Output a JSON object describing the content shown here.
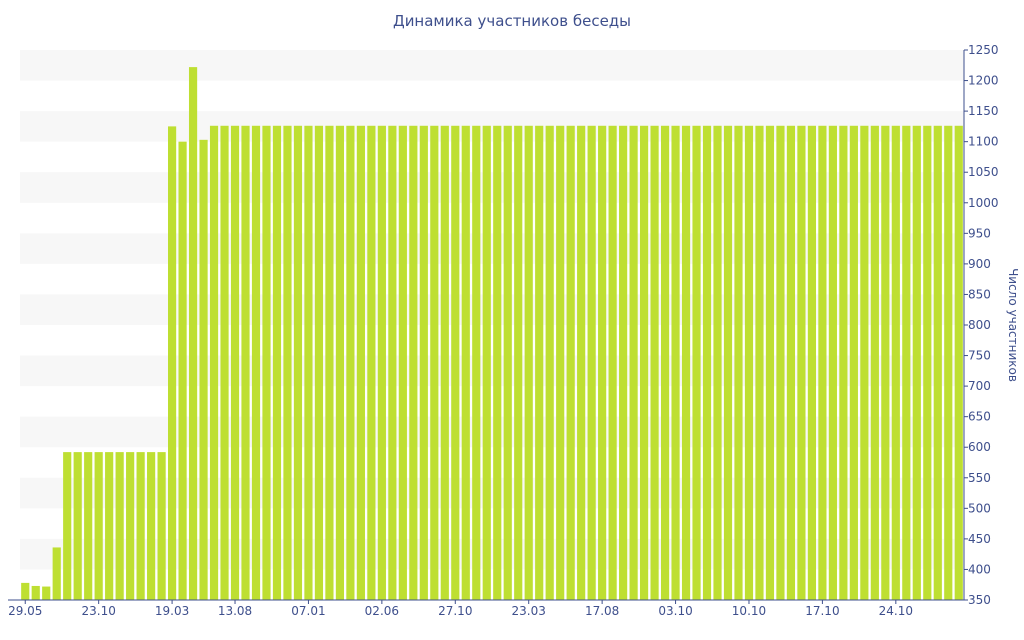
{
  "chart_data": {
    "type": "bar",
    "title": "Динамика участников беседы",
    "xlabel": "",
    "ylabel": "Число участников",
    "ylim": [
      350,
      1250
    ],
    "y_ticks": [
      350,
      400,
      450,
      500,
      550,
      600,
      650,
      700,
      750,
      800,
      850,
      900,
      950,
      1000,
      1050,
      1100,
      1150,
      1200,
      1250
    ],
    "x_tick_labels": [
      "29.05",
      "23.10",
      "19.03",
      "13.08",
      "07.01",
      "02.06",
      "27.10",
      "23.03",
      "17.08",
      "03.10",
      "10.10",
      "17.10",
      "24.10"
    ],
    "x_tick_bar_index": [
      0,
      7,
      14,
      20,
      27,
      34,
      41,
      48,
      55,
      62,
      69,
      76,
      83
    ],
    "grid": "horizontal alternating bands",
    "y_axis_side": "right",
    "bar_color": "#bedf32",
    "band_color": "#f7f7f7",
    "text_color": "#3e4f8c",
    "values": [
      378,
      373,
      372,
      436,
      592,
      592,
      592,
      592,
      592,
      592,
      592,
      592,
      592,
      592,
      1125,
      1100,
      1222,
      1103,
      1126,
      1126,
      1126,
      1126,
      1126,
      1126,
      1126,
      1126,
      1126,
      1126,
      1126,
      1126,
      1126,
      1126,
      1126,
      1126,
      1126,
      1126,
      1126,
      1126,
      1126,
      1126,
      1126,
      1126,
      1126,
      1126,
      1126,
      1126,
      1126,
      1126,
      1126,
      1126,
      1126,
      1126,
      1126,
      1126,
      1126,
      1126,
      1126,
      1126,
      1126,
      1126,
      1126,
      1126,
      1126,
      1126,
      1126,
      1126,
      1126,
      1126,
      1126,
      1126,
      1126,
      1126,
      1126,
      1126,
      1126,
      1126,
      1126,
      1126,
      1126,
      1126,
      1126,
      1126,
      1126,
      1126,
      1126,
      1126,
      1126,
      1126,
      1126,
      1126
    ]
  }
}
